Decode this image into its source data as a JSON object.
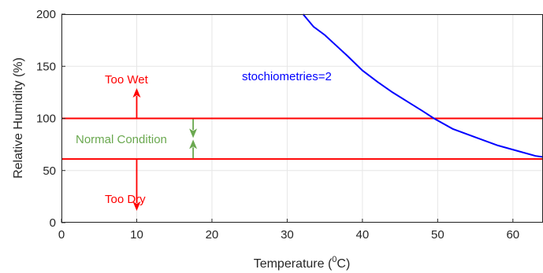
{
  "chart_data": {
    "type": "line",
    "title": "",
    "xlabel": "Temperature (",
    "xlabel_sup": "0",
    "xlabel_tail": "C)",
    "ylabel": "Relative Humidity (%)",
    "xlim": [
      0,
      64
    ],
    "ylim": [
      0,
      200
    ],
    "xticks": [
      "0",
      "10",
      "20",
      "30",
      "40",
      "50",
      "60"
    ],
    "yticks": [
      "0",
      "50",
      "100",
      "150",
      "200"
    ],
    "grid": true,
    "colors": {
      "curve": "#0000ff",
      "limits": "#ff0000",
      "normal": "#6aa84f",
      "axis": "#262626",
      "grid": "#e6e6e6"
    },
    "series": [
      {
        "name": "stochiometries=2",
        "x": [
          32.1,
          32.8,
          33.5,
          35,
          36.5,
          38,
          40,
          42,
          44,
          46,
          48,
          49.5,
          52,
          55,
          58,
          61,
          63,
          64
        ],
        "y": [
          200,
          194,
          188,
          180,
          170,
          160,
          146,
          135,
          125,
          116,
          107,
          100,
          90,
          82,
          74,
          68,
          64,
          63
        ]
      }
    ],
    "hlines": [
      {
        "name": "upper limit",
        "y": 100
      },
      {
        "name": "lower limit",
        "y": 61
      }
    ],
    "annotations": {
      "curve_label": "stochiometries=2",
      "too_wet": "Too Wet",
      "too_dry": "Too Dry",
      "normal": "Normal Condition"
    }
  }
}
